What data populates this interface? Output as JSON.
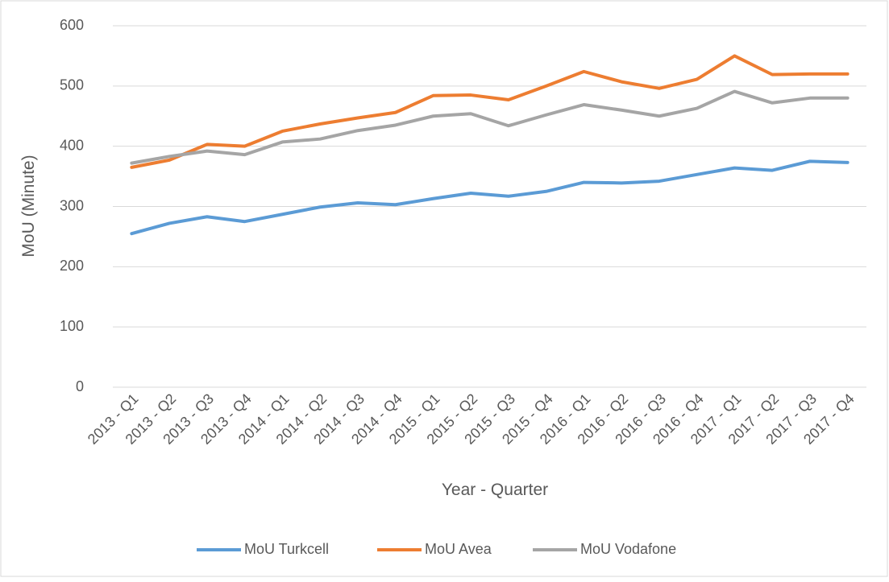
{
  "chart_data": {
    "type": "line",
    "x_label": "Year - Quarter",
    "y_label": "MoU (Minute)",
    "categories": [
      "2013 - Q1",
      "2013 - Q2",
      "2013 - Q3",
      "2013 - Q4",
      "2014 - Q1",
      "2014 - Q2",
      "2014 - Q3",
      "2014 - Q4",
      "2015 - Q1",
      "2015 - Q2",
      "2015 - Q3",
      "2015 - Q4",
      "2016 - Q1",
      "2016 - Q2",
      "2016 - Q3",
      "2016 - Q4",
      "2017 - Q1",
      "2017 - Q2",
      "2017 - Q3",
      "2017 - Q4"
    ],
    "series": [
      {
        "name": "MoU Turkcell",
        "color": "#5b9bd5",
        "values": [
          255,
          272,
          283,
          275,
          287,
          299,
          306,
          303,
          313,
          322,
          317,
          325,
          340,
          339,
          342,
          353,
          364,
          360,
          375,
          373
        ]
      },
      {
        "name": "MoU Avea",
        "color": "#ed7d31",
        "values": [
          365,
          377,
          403,
          400,
          425,
          437,
          447,
          456,
          484,
          485,
          477,
          500,
          524,
          507,
          496,
          511,
          550,
          519,
          520,
          520
        ]
      },
      {
        "name": "MoU Vodafone",
        "color": "#a5a5a5",
        "values": [
          372,
          383,
          392,
          386,
          407,
          412,
          426,
          435,
          450,
          454,
          434,
          452,
          469,
          460,
          450,
          463,
          491,
          472,
          480,
          480
        ]
      }
    ],
    "ylim": [
      0,
      600
    ],
    "yticks": [
      0,
      100,
      200,
      300,
      400,
      500,
      600
    ],
    "grid": true,
    "legend": "bottom"
  }
}
